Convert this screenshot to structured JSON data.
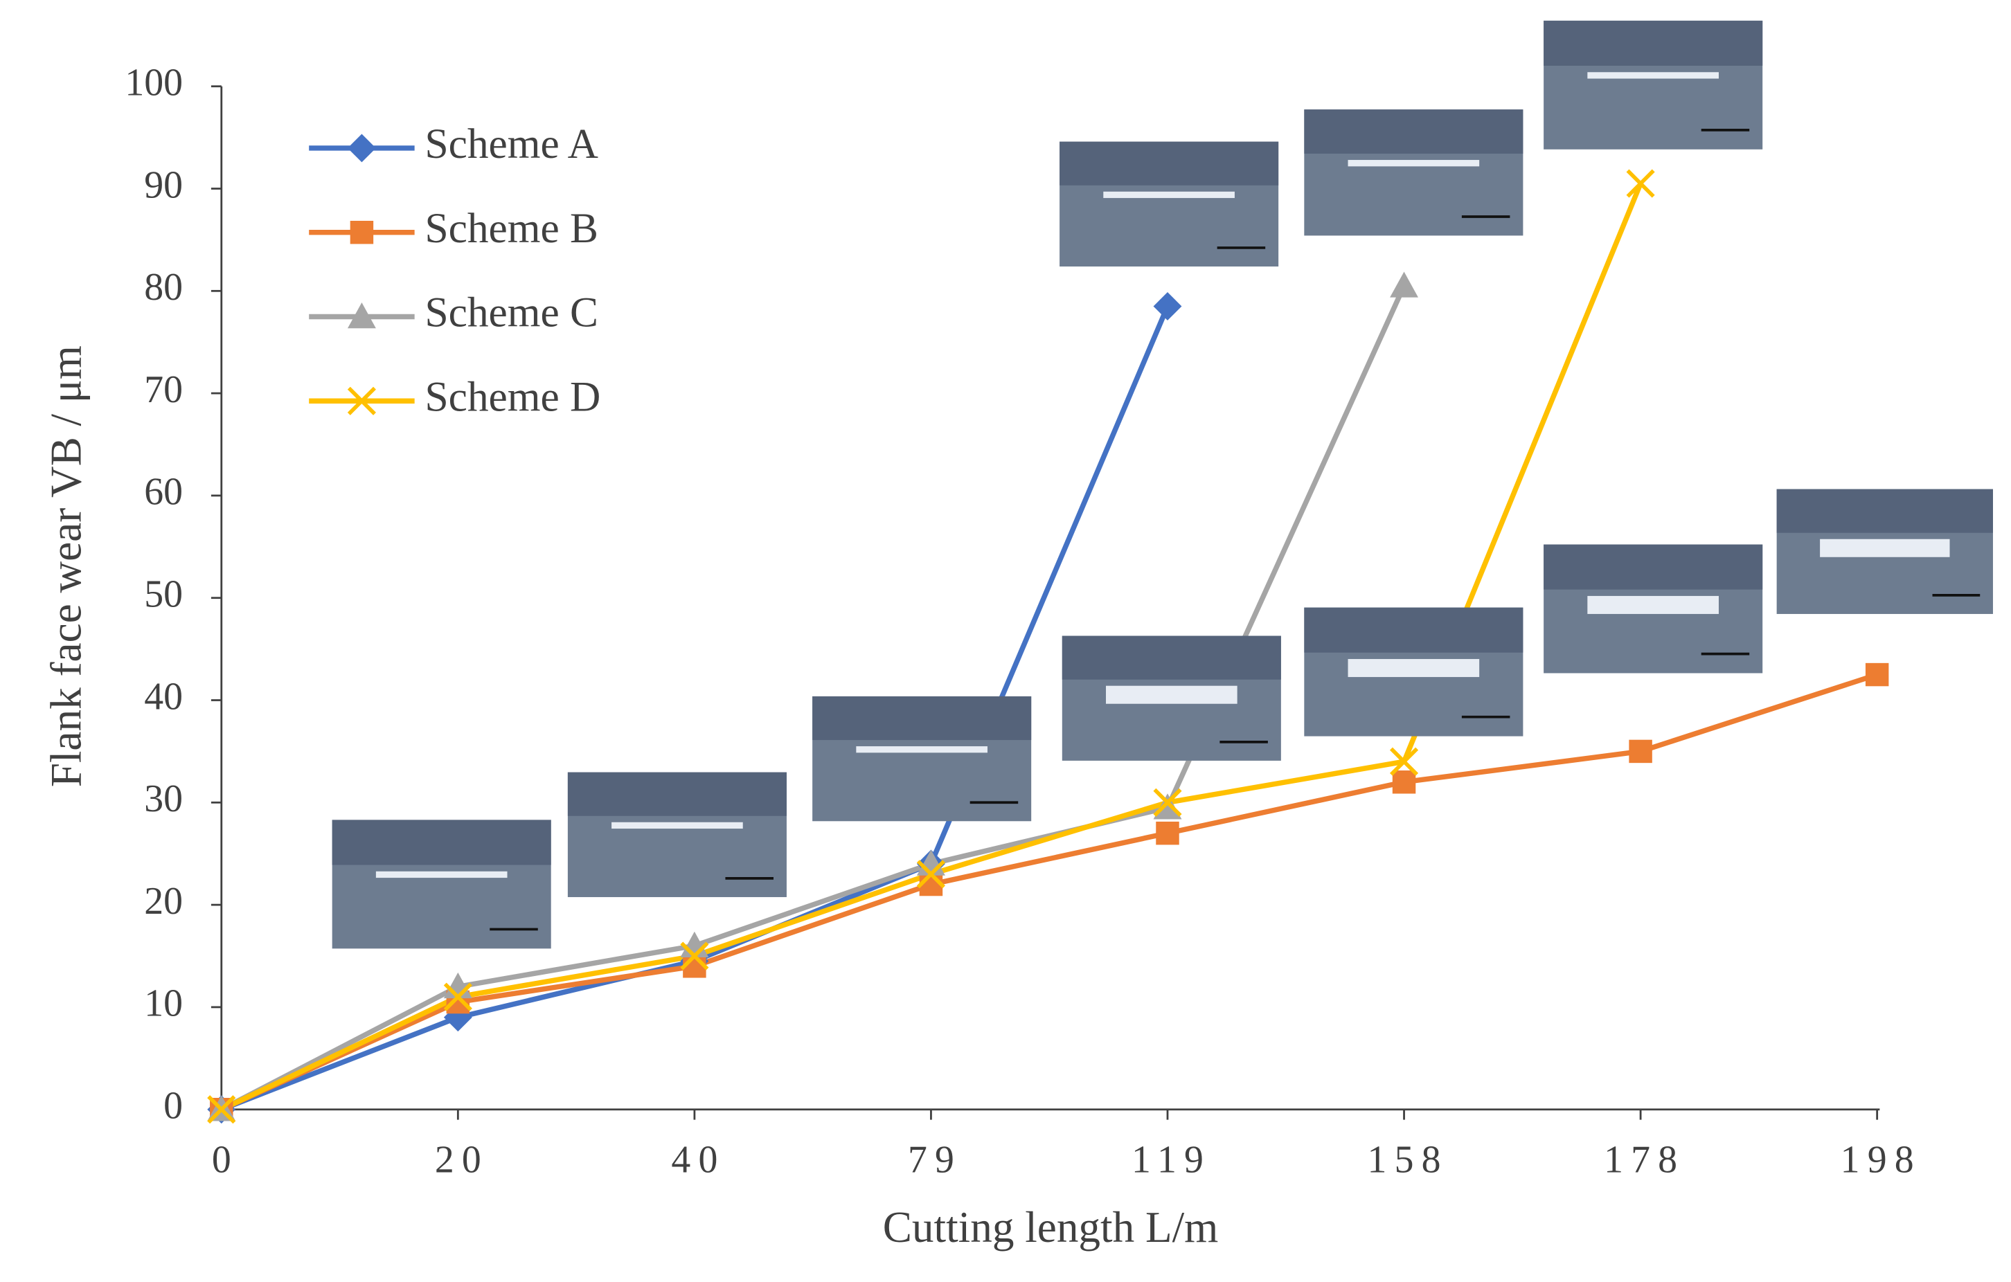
{
  "chart_data": {
    "type": "line",
    "x_label": "Cutting length L/m",
    "y_label": "Flank face wear VB / μm",
    "categories": [
      "0",
      "20",
      "40",
      "79",
      "119",
      "158",
      "178",
      "198"
    ],
    "series": [
      {
        "name": "Scheme A",
        "color": "#4472c4",
        "marker": "diamond",
        "values": [
          0,
          9,
          14.5,
          24,
          78.5,
          null,
          null,
          null
        ]
      },
      {
        "name": "Scheme B",
        "color": "#ed7d31",
        "marker": "square",
        "values": [
          0,
          10.5,
          14,
          22,
          27,
          32,
          35,
          42.5
        ]
      },
      {
        "name": "Scheme C",
        "color": "#a5a5a5",
        "marker": "triangle",
        "values": [
          0,
          12,
          16,
          24,
          29.5,
          80.5,
          null,
          null
        ]
      },
      {
        "name": "Scheme D",
        "color": "#ffc000",
        "marker": "x",
        "values": [
          0,
          11,
          15,
          23,
          30,
          34,
          90.5,
          null
        ]
      }
    ],
    "ylim": [
      0,
      100
    ],
    "yticks": [
      0,
      10,
      20,
      30,
      40,
      50,
      60,
      70,
      80,
      90,
      100
    ],
    "legend": "upper left",
    "grid": false
  }
}
